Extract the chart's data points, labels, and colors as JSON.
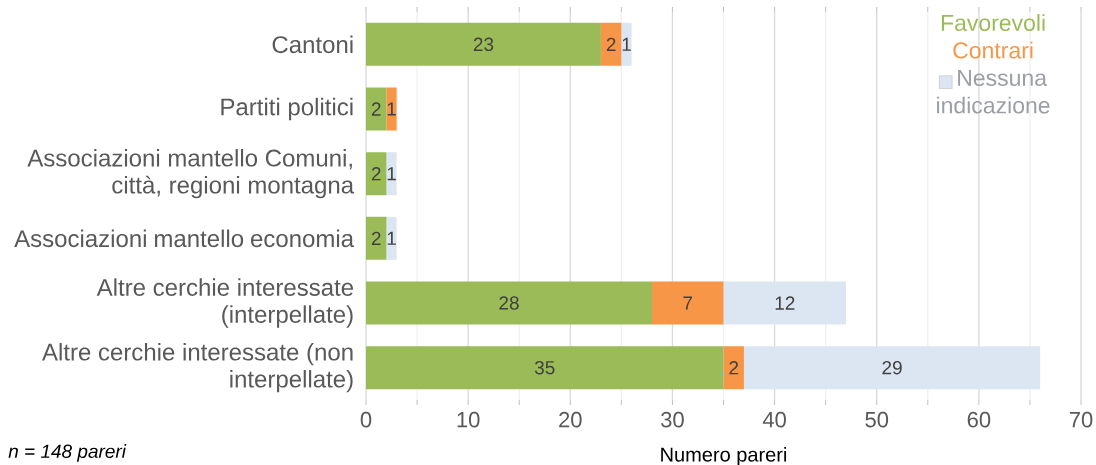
{
  "chart_data": {
    "type": "bar",
    "orientation": "horizontal",
    "stacked": true,
    "categories": [
      "Cantoni",
      "Partiti politici",
      "Associazioni mantello Comuni, città, regioni montagna",
      "Associazioni mantello economia",
      "Altre cerchie interessate (interpellate)",
      "Altre cerchie interessate (non interpellate)"
    ],
    "series": [
      {
        "name": "Favorevoli",
        "color": "#9bbb59",
        "values": [
          23,
          2,
          2,
          2,
          28,
          35
        ],
        "value_labels": [
          "23",
          "2",
          "2",
          "2",
          "28",
          "35"
        ]
      },
      {
        "name": "Contrari",
        "color": "#f79646",
        "values": [
          2,
          1,
          0,
          0,
          7,
          2
        ],
        "value_labels": [
          "2",
          "1",
          null,
          null,
          "7",
          "2"
        ]
      },
      {
        "name": "Nessuna indicazione",
        "color": "#dce6f2",
        "values": [
          1,
          0,
          1,
          1,
          12,
          29
        ],
        "value_labels": [
          "1",
          null,
          "1",
          "1",
          "12",
          "29"
        ]
      }
    ],
    "xlabel": "Numero pareri",
    "xlim": [
      0,
      70
    ],
    "xticks": [
      0,
      {
        "value": 5,
        "label": null
      },
      10,
      {
        "value": 15,
        "label": null
      },
      20,
      {
        "value": 25,
        "label": null
      },
      30,
      {
        "value": 35,
        "label": null
      },
      40,
      {
        "value": 45,
        "label": null
      },
      50,
      {
        "value": 55,
        "label": null
      },
      60,
      {
        "value": 65,
        "label": null
      },
      70
    ],
    "grid": "x",
    "legend": "top right",
    "annotations": [
      "n = 148 pareri"
    ]
  }
}
